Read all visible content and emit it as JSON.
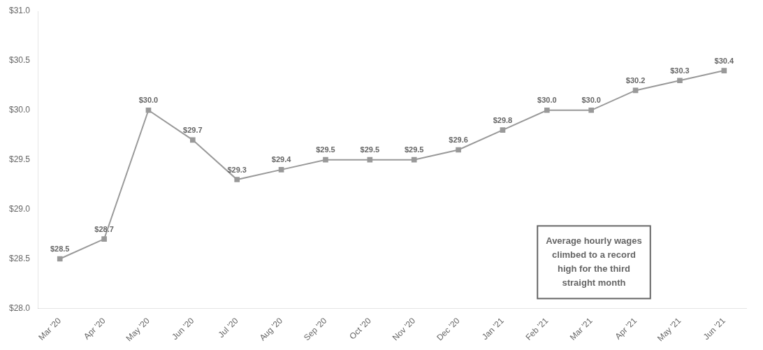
{
  "chart_data": {
    "type": "line",
    "categories": [
      "Mar '20",
      "Apr '20",
      "May '20",
      "Jun '20",
      "Jul '20",
      "Aug '20",
      "Sep '20",
      "Oct '20",
      "Nov '20",
      "Dec '20",
      "Jan '21",
      "Feb '21",
      "Mar '21",
      "Apr '21",
      "May '21",
      "Jun '21"
    ],
    "values": [
      28.5,
      28.7,
      30.0,
      29.7,
      29.3,
      29.4,
      29.5,
      29.5,
      29.5,
      29.6,
      29.8,
      30.0,
      30.0,
      30.2,
      30.3,
      30.4
    ],
    "value_labels": [
      "$28.5",
      "$28.7",
      "$30.0",
      "$29.7",
      "$29.3",
      "$29.4",
      "$29.5",
      "$29.5",
      "$29.5",
      "$29.6",
      "$29.8",
      "$30.0",
      "$30.0",
      "$30.2",
      "$30.3",
      "$30.4"
    ],
    "data_labels": true,
    "color": "#999999",
    "marker": "square",
    "ylim": [
      28.0,
      31.0
    ],
    "yticks": [
      {
        "value": 28.0,
        "label": "$28.0"
      },
      {
        "value": 28.5,
        "label": "$28.5"
      },
      {
        "value": 29.0,
        "label": "$29.0"
      },
      {
        "value": 29.5,
        "label": "$29.5"
      },
      {
        "value": 30.0,
        "label": "$30.0"
      },
      {
        "value": 30.5,
        "label": "$30.5"
      },
      {
        "value": 31.0,
        "label": "$31.0"
      }
    ],
    "grid": false,
    "annotation": "Average hourly wages\nclimbed to a record\nhigh for the third\nstraight month"
  }
}
